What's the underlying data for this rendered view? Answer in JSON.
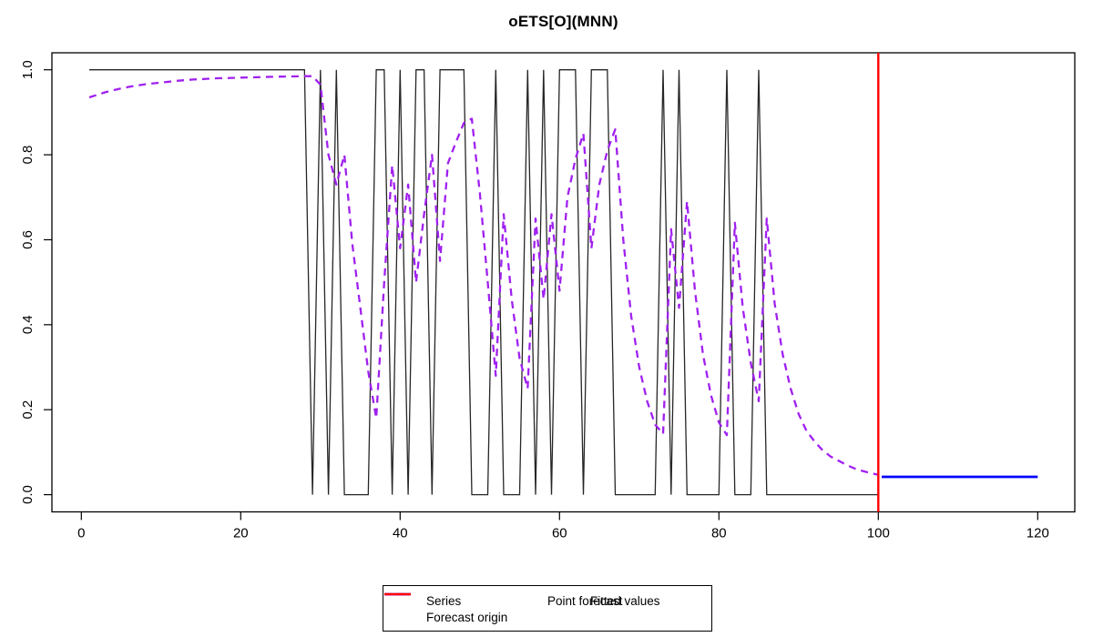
{
  "chart_data": {
    "type": "line",
    "title": "oETS[O](MNN)",
    "xlabel": "",
    "ylabel": "",
    "xlim": [
      -3.8,
      124.8
    ],
    "ylim": [
      -0.04,
      1.04
    ],
    "x_ticks": [
      0,
      20,
      40,
      60,
      80,
      100,
      120
    ],
    "y_ticks": [
      "0.0",
      "0.2",
      "0.4",
      "0.6",
      "0.8",
      "1.0"
    ],
    "grid": false,
    "series": {
      "name": "Series",
      "color": "#262626",
      "x_start": 1,
      "values": [
        1,
        1,
        1,
        1,
        1,
        1,
        1,
        1,
        1,
        1,
        1,
        1,
        1,
        1,
        1,
        1,
        1,
        1,
        1,
        1,
        1,
        1,
        1,
        1,
        1,
        1,
        1,
        1,
        0,
        1,
        0,
        1,
        0,
        0,
        0,
        0,
        1,
        1,
        0,
        1,
        0,
        1,
        1,
        0,
        1,
        1,
        1,
        1,
        0,
        0,
        0,
        1,
        0,
        0,
        0,
        1,
        0,
        1,
        0,
        1,
        1,
        1,
        0,
        1,
        1,
        1,
        0,
        0,
        0,
        0,
        0,
        0,
        1,
        0,
        1,
        0,
        0,
        0,
        0,
        0,
        1,
        0,
        0,
        0,
        1,
        0,
        0,
        0,
        0,
        0,
        0,
        0,
        0,
        0,
        0,
        0,
        0,
        0,
        0,
        0
      ]
    },
    "fitted": {
      "name": "Fitted values",
      "color": "#A020F0",
      "x_start": 1,
      "values": [
        0.935,
        0.941,
        0.947,
        0.952,
        0.956,
        0.96,
        0.963,
        0.966,
        0.968,
        0.97,
        0.972,
        0.974,
        0.9755,
        0.977,
        0.978,
        0.979,
        0.98,
        0.9805,
        0.981,
        0.9815,
        0.982,
        0.9825,
        0.983,
        0.9835,
        0.984,
        0.9842,
        0.9846,
        0.985,
        0.985,
        0.965,
        0.8,
        0.73,
        0.8,
        0.59,
        0.44,
        0.29,
        0.18,
        0.5,
        0.775,
        0.58,
        0.73,
        0.5,
        0.66,
        0.8,
        0.55,
        0.78,
        0.83,
        0.875,
        0.885,
        0.71,
        0.5,
        0.28,
        0.66,
        0.46,
        0.32,
        0.25,
        0.65,
        0.46,
        0.66,
        0.48,
        0.7,
        0.79,
        0.85,
        0.58,
        0.73,
        0.81,
        0.86,
        0.6,
        0.42,
        0.3,
        0.22,
        0.165,
        0.143,
        0.625,
        0.44,
        0.69,
        0.48,
        0.33,
        0.235,
        0.17,
        0.14,
        0.64,
        0.44,
        0.31,
        0.22,
        0.65,
        0.45,
        0.33,
        0.25,
        0.19,
        0.15,
        0.125,
        0.105,
        0.09,
        0.08,
        0.07,
        0.062,
        0.056,
        0.051,
        0.047
      ]
    },
    "point_forecast": {
      "name": "Point forecast",
      "color": "#0000FF",
      "x_start": 101,
      "x_end": 120,
      "value": 0.042
    },
    "forecast_origin": {
      "name": "Forecast origin",
      "color": "#FF0000",
      "x": 100
    },
    "legend": {
      "position": "bottom-center",
      "items": [
        {
          "id": "series",
          "label": "Series",
          "color": "#7f7f7f",
          "dash": "none",
          "width": 1.6,
          "col": 1,
          "row": 1
        },
        {
          "id": "fitted-values",
          "label": "Fitted values",
          "color": "#A020F0",
          "dash": "8 6",
          "width": 2.4,
          "col": 1,
          "row": 2
        },
        {
          "id": "point-forecast",
          "label": "Point forecast",
          "color": "#0000FF",
          "dash": "none",
          "width": 2.4,
          "col": 2,
          "row": 1
        },
        {
          "id": "forecast-origin",
          "label": "Forecast origin",
          "color": "#FF0000",
          "dash": "none",
          "width": 2.4,
          "col": 2,
          "row": 2
        }
      ]
    }
  }
}
